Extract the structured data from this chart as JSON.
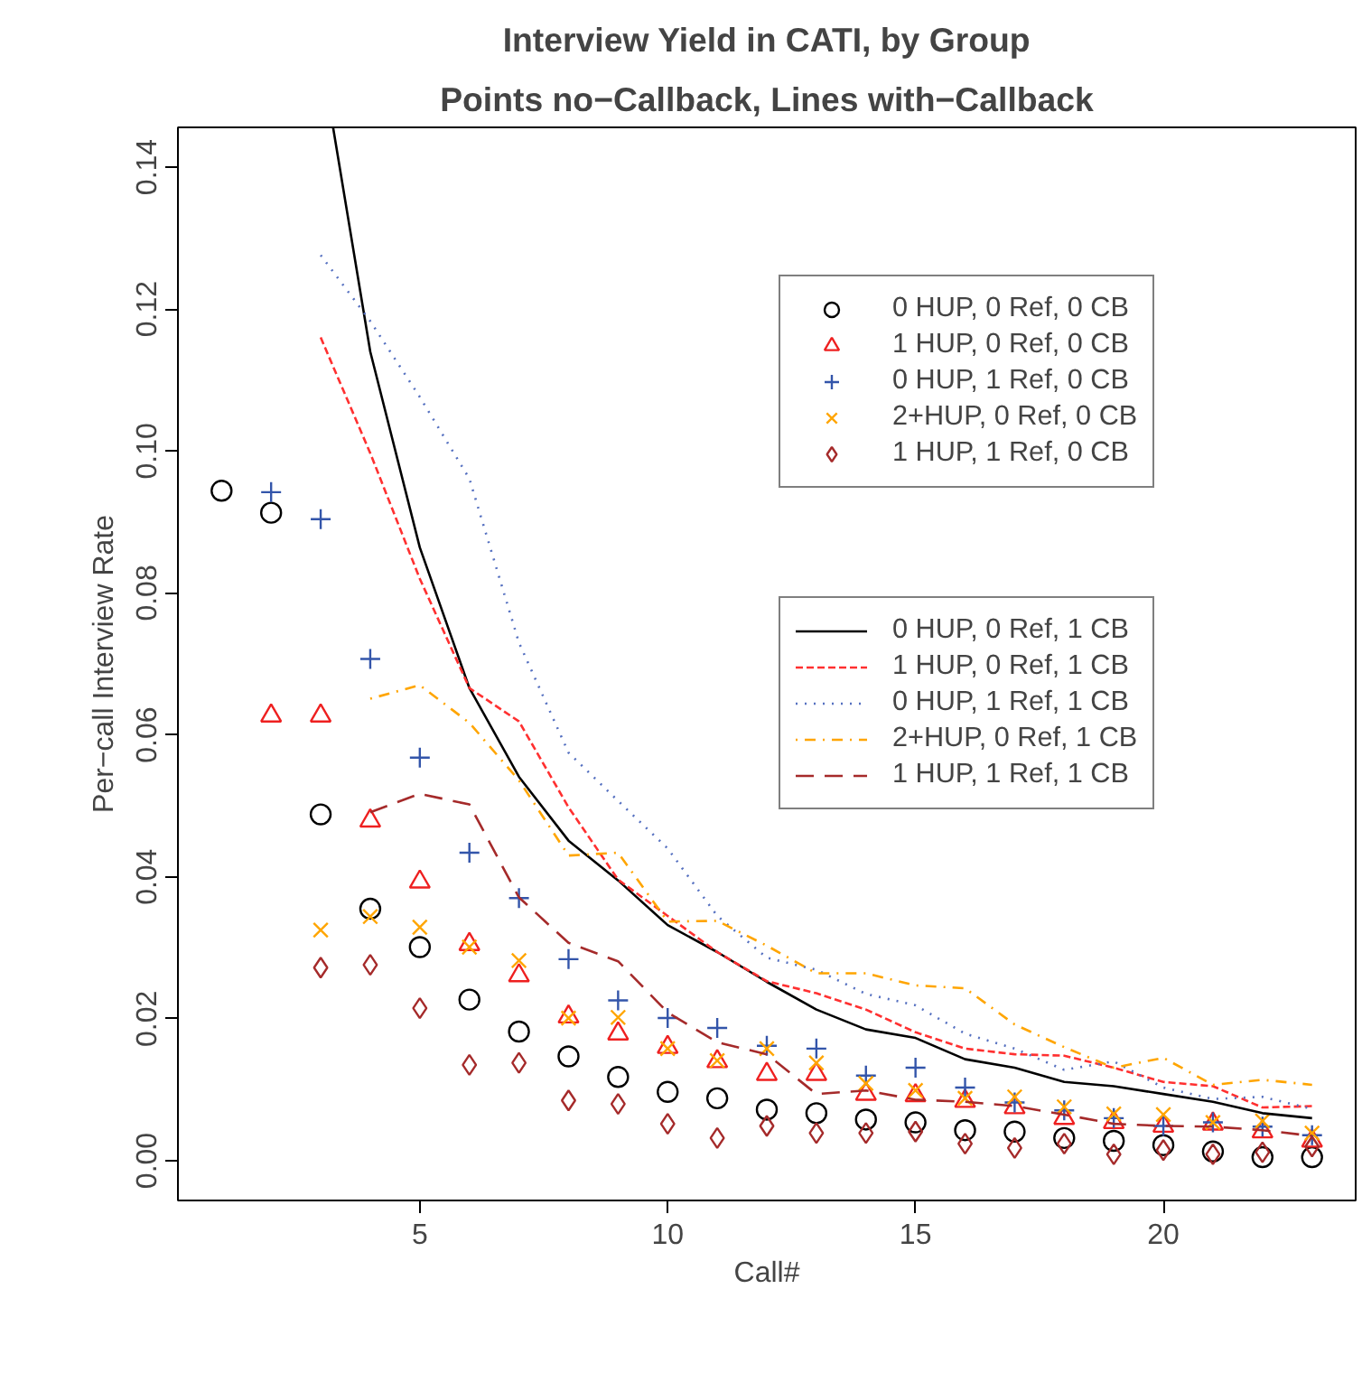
{
  "chart_data": {
    "type": "scatter",
    "title": "Interview Yield in CATI, by Group",
    "subtitle": "Points no−Callback, Lines with−Callback",
    "xlabel": "Call#",
    "ylabel": "Per−call Interview Rate",
    "x": [
      1,
      2,
      3,
      4,
      5,
      6,
      7,
      8,
      9,
      10,
      11,
      12,
      13,
      14,
      15,
      16,
      17,
      18,
      19,
      20,
      21,
      22,
      23
    ],
    "xlim": [
      0.12,
      23.88
    ],
    "ylim": [
      -0.0056,
      0.1456
    ],
    "xticks": [
      5,
      10,
      15,
      20
    ],
    "yticks": [
      {
        "value": 0,
        "label": "0.00"
      },
      {
        "value": 0.02,
        "label": "0.02"
      },
      {
        "value": 0.04,
        "label": "0.04"
      },
      {
        "value": 0.06,
        "label": "0.06"
      },
      {
        "value": 0.08,
        "label": "0.08"
      },
      {
        "value": 0.1,
        "label": "0.10"
      },
      {
        "value": 0.12,
        "label": "0.12"
      },
      {
        "value": 0.14,
        "label": "0.14"
      }
    ],
    "grid": false,
    "legend": "top right",
    "series": [
      {
        "name": "0 HUP, 0 Ref, 0 CB",
        "color": "#000000",
        "marker": "circle",
        "values": [
          0.0944,
          0.0913,
          0.0488,
          0.0355,
          0.0301,
          0.0227,
          0.0182,
          0.0147,
          0.0118,
          0.0097,
          0.0088,
          0.0072,
          0.0067,
          0.0058,
          0.0054,
          0.0043,
          0.0041,
          0.0032,
          0.0028,
          0.0022,
          0.0013,
          0.0005,
          0.0005
        ]
      },
      {
        "name": "1 HUP, 0 Ref, 0 CB",
        "color": "#ee2020",
        "marker": "triangle",
        "values": [
          null,
          0.0627,
          0.0627,
          0.0479,
          0.0393,
          0.0305,
          0.0261,
          0.0203,
          0.0179,
          0.016,
          0.014,
          0.0122,
          0.0122,
          0.0094,
          0.0092,
          0.0084,
          0.0075,
          0.006,
          0.0054,
          0.0049,
          0.0052,
          0.0041,
          0.0028
        ]
      },
      {
        "name": "0 HUP, 1 Ref, 0 CB",
        "color": "#3355aa",
        "marker": "cross",
        "values": [
          null,
          0.0942,
          0.0904,
          0.0707,
          0.0568,
          0.0434,
          0.037,
          0.0284,
          0.0226,
          0.0201,
          0.0187,
          0.0162,
          0.0158,
          0.012,
          0.0131,
          0.0103,
          0.0082,
          0.0071,
          0.006,
          0.0049,
          0.0054,
          0.0048,
          0.0036
        ]
      },
      {
        "name": "2+HUP, 0 Ref, 0 CB",
        "color": "#ffa500",
        "marker": "x",
        "values": [
          null,
          null,
          0.0325,
          0.0344,
          0.0329,
          0.0301,
          0.0282,
          0.0201,
          0.0202,
          0.0158,
          0.0141,
          0.0158,
          0.0138,
          0.0109,
          0.0099,
          0.0088,
          0.009,
          0.0076,
          0.0066,
          0.0065,
          0.0054,
          0.0056,
          0.0039
        ]
      },
      {
        "name": "1 HUP, 1 Ref, 0 CB",
        "color": "#a52a2a",
        "marker": "diamond",
        "values": [
          null,
          null,
          0.0272,
          0.0276,
          0.0215,
          0.0135,
          0.0138,
          0.0085,
          0.008,
          0.0052,
          0.0032,
          0.0049,
          0.0039,
          0.0039,
          0.0041,
          0.0024,
          0.0018,
          0.0024,
          0.0009,
          0.0015,
          0.0009,
          0.0012,
          0.002
        ]
      },
      {
        "name": "0 HUP, 0 Ref, 1 CB",
        "type": "line",
        "color": "#000000",
        "line_style": "solid",
        "x": [
          3.25,
          4,
          5,
          6,
          7,
          8,
          9,
          10,
          11,
          12,
          13,
          14,
          15,
          16,
          17,
          18,
          19,
          20,
          21,
          22,
          23
        ],
        "values": [
          0.1456,
          0.114,
          0.0864,
          0.0666,
          0.0541,
          0.0451,
          0.0395,
          0.0332,
          0.0294,
          0.0252,
          0.0213,
          0.0185,
          0.0173,
          0.0143,
          0.0131,
          0.0111,
          0.0105,
          0.0094,
          0.0083,
          0.0067,
          0.006
        ]
      },
      {
        "name": "1 HUP, 0 Ref, 1 CB",
        "type": "line",
        "color": "#ff3030",
        "line_style": "dashed",
        "values": [
          null,
          null,
          0.116,
          0.0997,
          0.082,
          0.0666,
          0.0619,
          0.0498,
          0.0396,
          0.0345,
          0.0294,
          0.0253,
          0.0236,
          0.0213,
          0.0181,
          0.0158,
          0.015,
          0.0148,
          0.0131,
          0.0111,
          0.0105,
          0.0075,
          0.0077
        ]
      },
      {
        "name": "0 HUP, 1 Ref, 1 CB",
        "type": "line",
        "color": "#5570c0",
        "line_style": "dotted",
        "values": [
          null,
          null,
          0.1276,
          0.1183,
          0.1076,
          0.0961,
          0.073,
          0.0575,
          0.0507,
          0.044,
          0.0345,
          0.0286,
          0.0269,
          0.0235,
          0.0219,
          0.0179,
          0.0158,
          0.0128,
          0.014,
          0.0103,
          0.0087,
          0.009,
          0.0073
        ]
      },
      {
        "name": "2+HUP, 0 Ref, 1 CB",
        "type": "line",
        "color": "#ffa500",
        "line_style": "dashdot",
        "values": [
          null,
          null,
          null,
          0.0651,
          0.067,
          0.0617,
          0.0536,
          0.043,
          0.0434,
          0.0337,
          0.0338,
          0.0303,
          0.0264,
          0.0264,
          0.0247,
          0.0243,
          0.0192,
          0.016,
          0.0131,
          0.0145,
          0.0107,
          0.0114,
          0.0107
        ]
      },
      {
        "name": "1 HUP, 1 Ref, 1 CB",
        "type": "line",
        "color": "#a52a2a",
        "line_style": "longdash",
        "values": [
          null,
          null,
          null,
          0.0491,
          0.0517,
          0.0502,
          0.0371,
          0.0307,
          0.0281,
          0.0209,
          0.0167,
          0.015,
          0.0094,
          0.0099,
          0.0086,
          0.0083,
          0.0077,
          0.0065,
          0.0052,
          0.0049,
          0.0048,
          0.0043,
          0.0035
        ]
      }
    ]
  }
}
